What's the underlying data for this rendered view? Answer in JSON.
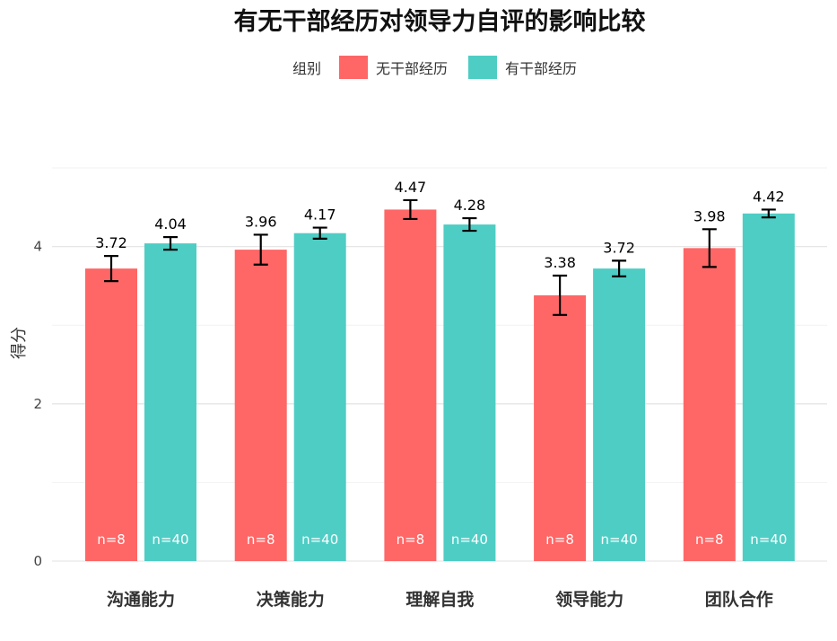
{
  "chart_data": {
    "type": "bar",
    "title": "有无干部经历对领导力自评的影响比较",
    "xlabel": "",
    "ylabel": "得分",
    "ylim": [
      0,
      5
    ],
    "yticks": [
      0,
      2,
      4
    ],
    "legend_title": "组别",
    "legend_position": "top",
    "categories": [
      "沟通能力",
      "决策能力",
      "理解自我",
      "领导能力",
      "团队合作"
    ],
    "series": [
      {
        "name": "无干部经历",
        "color": "#FF6666",
        "values": [
          3.72,
          3.96,
          4.47,
          3.38,
          3.98
        ],
        "labels": [
          "3.72",
          "3.96",
          "4.47",
          "3.38",
          "3.98"
        ],
        "error": [
          0.16,
          0.19,
          0.12,
          0.25,
          0.24
        ],
        "n": [
          "n=8",
          "n=8",
          "n=8",
          "n=8",
          "n=8"
        ]
      },
      {
        "name": "有干部经历",
        "color": "#4ECDC4",
        "values": [
          4.04,
          4.17,
          4.28,
          3.72,
          4.42
        ],
        "labels": [
          "4.04",
          "4.17",
          "4.28",
          "3.72",
          "4.42"
        ],
        "error": [
          0.08,
          0.07,
          0.08,
          0.1,
          0.05
        ],
        "n": [
          "n=40",
          "n=40",
          "n=40",
          "n=40",
          "n=40"
        ]
      }
    ]
  }
}
